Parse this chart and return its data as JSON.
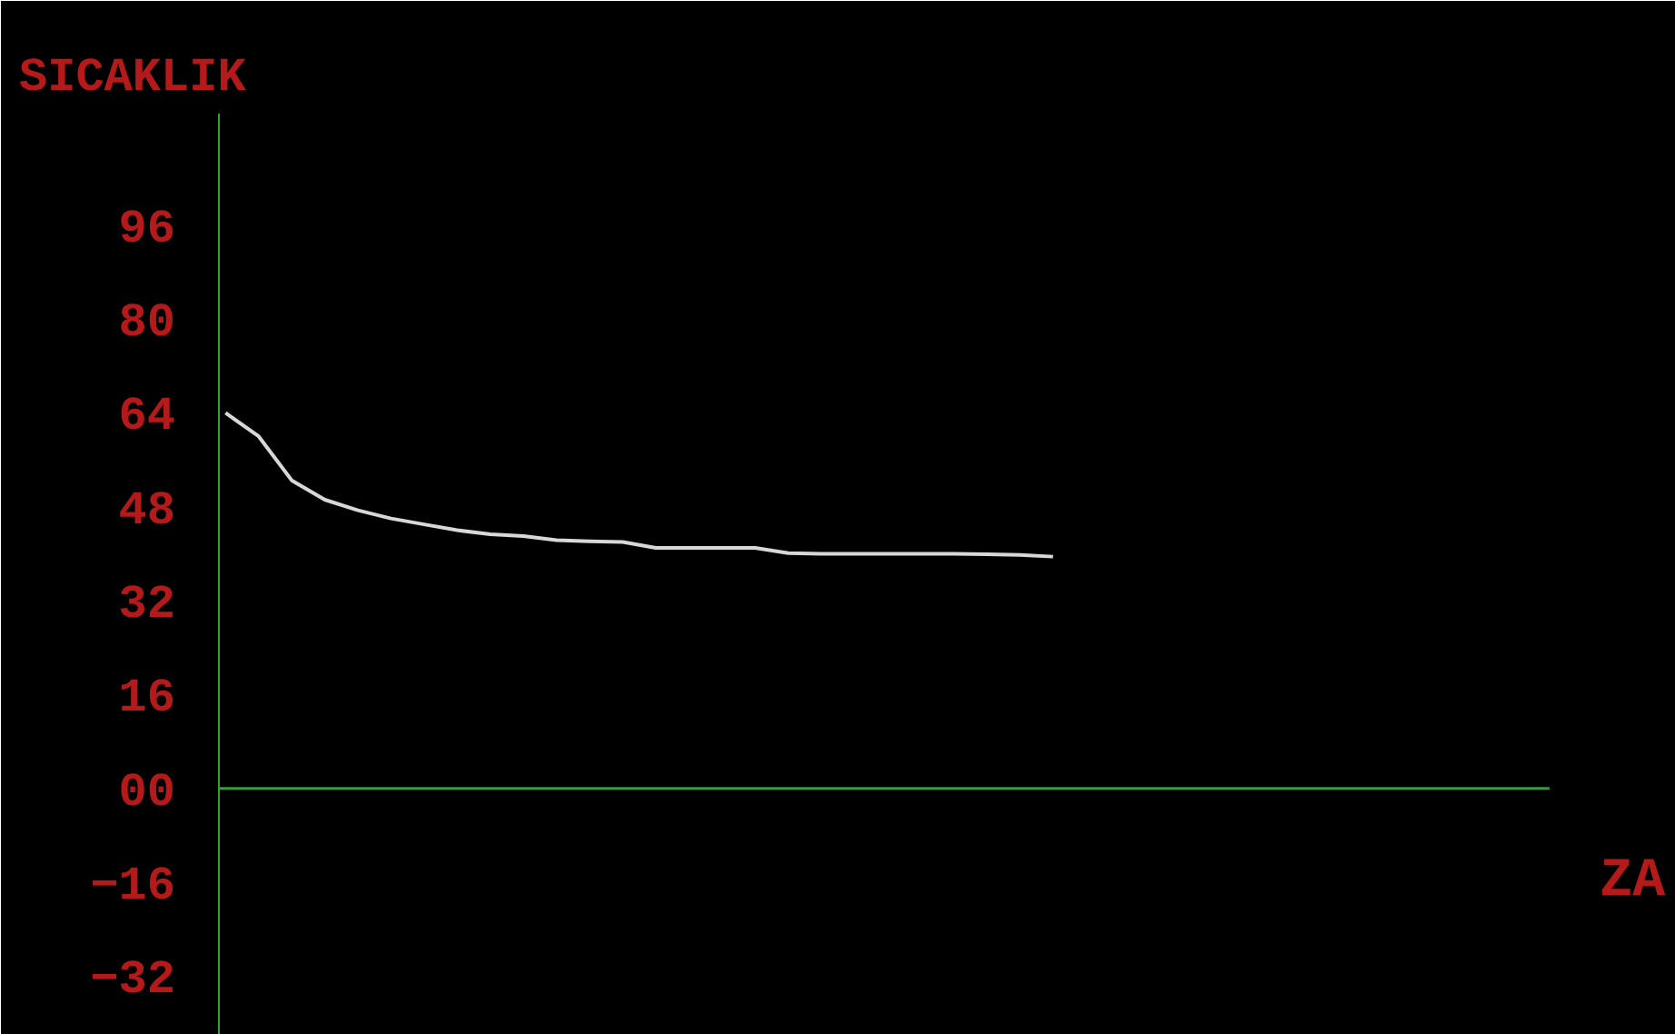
{
  "chart_data": {
    "type": "line",
    "ylabel": "SICAKLIK",
    "xlabel": "ZA",
    "categories": [
      null,
      null,
      null,
      null,
      null,
      null,
      null,
      null,
      null,
      null,
      null,
      null,
      null,
      null,
      null,
      null,
      null,
      null,
      null,
      null,
      null,
      null,
      null,
      null,
      null,
      null,
      null,
      null,
      null,
      null,
      null,
      null,
      null,
      null,
      null,
      null,
      null,
      null,
      null,
      null,
      null
    ],
    "series": [
      {
        "color": "#d8d8d8",
        "values": [
          64,
          60,
          52.5,
          49.2,
          47.4,
          46,
          45,
          44,
          43.3,
          43,
          42.3,
          42.1,
          42,
          41,
          41,
          41,
          41,
          40.1,
          40,
          40,
          40,
          40,
          40,
          39.9,
          39.8,
          39.5,
          null,
          null,
          null,
          null,
          null,
          null,
          null,
          null,
          null,
          null,
          null,
          null,
          null,
          null,
          null
        ]
      }
    ],
    "ylim": [
      -42,
      115
    ],
    "yticks": [
      96,
      {
        "value": 80,
        "label": "80"
      },
      64,
      48,
      32,
      16,
      {
        "value": 0,
        "label": "00"
      },
      -16,
      -32
    ],
    "ref_lines": [
      {
        "axis": "y",
        "value": 0,
        "color": "#3c9a3c"
      }
    ],
    "grid": false,
    "marker": "none",
    "line_style": "solid"
  }
}
